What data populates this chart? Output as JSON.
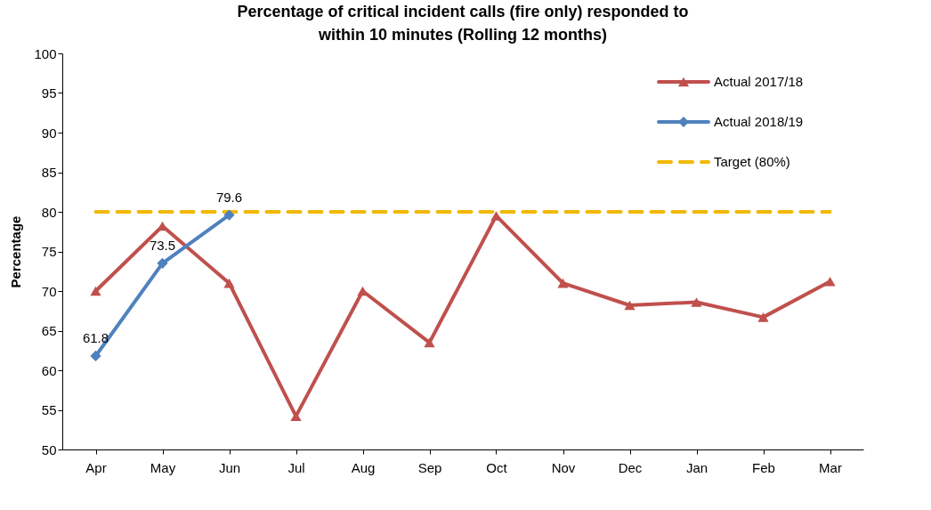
{
  "chart_data": {
    "type": "line",
    "title": "Percentage of critical incident calls (fire only) responded to within 10 minutes (Rolling 12 months)",
    "ylabel": "Percentage",
    "categories": [
      "Apr",
      "May",
      "Jun",
      "Jul",
      "Aug",
      "Sep",
      "Oct",
      "Nov",
      "Dec",
      "Jan",
      "Feb",
      "Mar"
    ],
    "series": [
      {
        "name": "Actual 2017/18",
        "color": "#c0504d",
        "marker": "triangle",
        "values": [
          70,
          78.2,
          71,
          54.2,
          70,
          63.5,
          79.5,
          71,
          68.2,
          68.6,
          66.7,
          71.2
        ]
      },
      {
        "name": "Actual 2018/19",
        "color": "#4f81bd",
        "marker": "diamond",
        "values": [
          61.8,
          73.5,
          79.6,
          null,
          null,
          null,
          null,
          null,
          null,
          null,
          null,
          null
        ],
        "value_labels": [
          "61.8",
          "73.5",
          "79.6",
          null,
          null,
          null,
          null,
          null,
          null,
          null,
          null,
          null
        ]
      },
      {
        "name": "Target (80%)",
        "color": "#f0b800",
        "marker": "none",
        "line_style": "dashed",
        "values": [
          80,
          80,
          80,
          80,
          80,
          80,
          80,
          80,
          80,
          80,
          80,
          80
        ]
      }
    ],
    "ylim": [
      50,
      100
    ],
    "yticks": [
      50,
      55,
      60,
      65,
      70,
      75,
      80,
      85,
      90,
      95,
      100
    ],
    "grid": false,
    "legend": "top right"
  }
}
